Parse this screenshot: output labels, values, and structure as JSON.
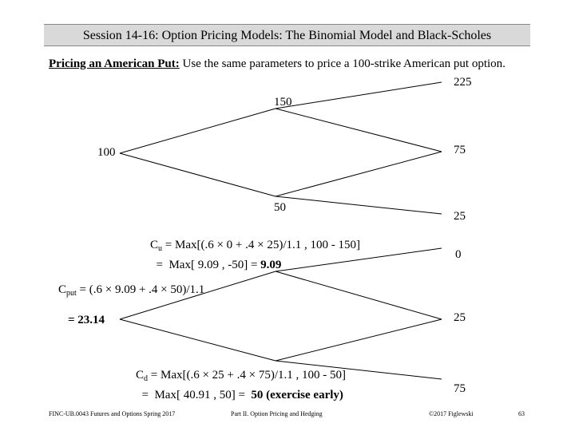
{
  "header": {
    "title": "Session 14-16:  Option Pricing Models:  The Binomial Model and Black-Scholes"
  },
  "intro": {
    "heading": "Pricing an American Put:",
    "text": "  Use the same parameters to price a 100-strike American put option."
  },
  "tree": {
    "s0": "100",
    "su": "150",
    "sd": "50",
    "suu": "225",
    "sud": "75",
    "sdd": "25",
    "payoff_uu": "0",
    "payoff_ud": "25",
    "payoff_dd": "75"
  },
  "formulas": {
    "cu_label": "C",
    "cu_sub": "u",
    "cu_line1": " = Max[(.6 × 0 + .4 × 25)/1.1 , 100 - 150]",
    "cu_line2_prefix": "  =  Max[ 9.09 , -50] = ",
    "cu_line2_bold": "9.09",
    "cput_label": "C",
    "cput_sub": "put",
    "cput_line1": " = (.6 × 9.09 + .4 × 50)/1.1",
    "cput_line2": "= 23.14",
    "cd_label": "C",
    "cd_sub": "d",
    "cd_line1": " = Max[(.6 × 25 + .4 × 75)/1.1 , 100 - 50]",
    "cd_line2_prefix": "  =  Max[ 40.91 , 50] =  ",
    "cd_line2_bold": "50 (exercise early)"
  },
  "footer": {
    "course": "FINC-UB.0043  Futures and Options  Spring 2017",
    "part": "Part II. Option Pricing and Hedging",
    "copyright": "©2017 Figlewski",
    "page": "63"
  }
}
